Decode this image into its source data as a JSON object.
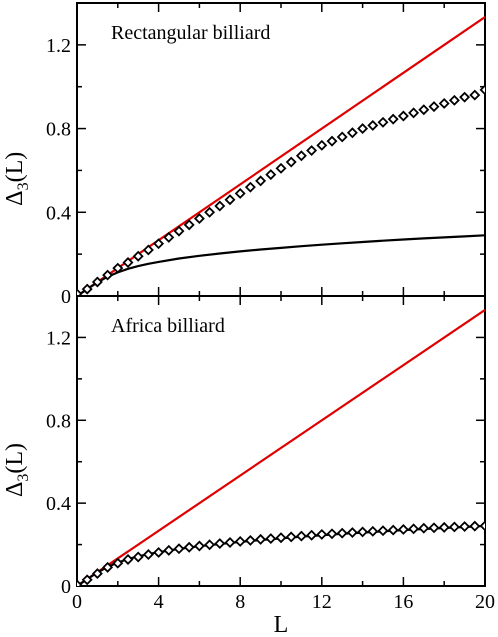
{
  "chart_data": [
    {
      "type": "line",
      "title": "Rectangular billiard",
      "xlabel": "",
      "ylabel": "Δ3(L)",
      "xlim": [
        0,
        20
      ],
      "ylim": [
        0,
        1.4
      ],
      "xticks": [
        0,
        4,
        8,
        12,
        16,
        20
      ],
      "yticks": [
        0,
        0.4,
        0.8,
        1.2
      ],
      "xtick_labels": [
        "",
        "",
        "",
        "",
        "",
        ""
      ],
      "ytick_labels": [
        "0",
        "0.4",
        "0.8",
        "1.2"
      ],
      "grid": false,
      "legend": "none",
      "series": [
        {
          "style": "line",
          "color": "#e00000",
          "x": [
            0,
            20
          ],
          "y": [
            0,
            1.333
          ]
        },
        {
          "style": "line",
          "color": "#000000",
          "x": [
            0,
            0.5,
            1,
            1.5,
            2,
            2.5,
            3,
            3.5,
            4,
            5,
            6,
            7,
            8,
            9,
            10,
            11,
            12,
            13,
            14,
            15,
            16,
            17,
            18,
            19,
            20
          ],
          "y": [
            0,
            0.033,
            0.065,
            0.092,
            0.113,
            0.13,
            0.143,
            0.154,
            0.163,
            0.179,
            0.192,
            0.203,
            0.213,
            0.222,
            0.23,
            0.238,
            0.245,
            0.252,
            0.258,
            0.264,
            0.27,
            0.275,
            0.28,
            0.285,
            0.29
          ]
        },
        {
          "style": "markers",
          "marker": "diamond",
          "color": "#000000",
          "x": [
            0,
            0.5,
            1,
            1.5,
            2,
            2.5,
            3,
            3.5,
            4,
            4.5,
            5,
            5.5,
            6,
            6.5,
            7,
            7.5,
            8,
            8.5,
            9,
            9.5,
            10,
            10.5,
            11,
            11.5,
            12,
            12.5,
            13,
            13.5,
            14,
            14.5,
            15,
            15.5,
            16,
            16.5,
            17,
            17.5,
            18,
            18.5,
            19,
            19.5,
            20
          ],
          "y": [
            0.01,
            0.033,
            0.067,
            0.1,
            0.133,
            0.16,
            0.19,
            0.22,
            0.25,
            0.28,
            0.31,
            0.34,
            0.37,
            0.4,
            0.43,
            0.46,
            0.49,
            0.52,
            0.55,
            0.58,
            0.61,
            0.64,
            0.67,
            0.695,
            0.72,
            0.74,
            0.76,
            0.78,
            0.8,
            0.815,
            0.83,
            0.845,
            0.86,
            0.875,
            0.89,
            0.905,
            0.92,
            0.935,
            0.95,
            0.96,
            0.985
          ]
        }
      ]
    },
    {
      "type": "line",
      "title": "Africa billiard",
      "xlabel": "L",
      "ylabel": "Δ3(L)",
      "xlim": [
        0,
        20
      ],
      "ylim": [
        0,
        1.4
      ],
      "xticks": [
        0,
        4,
        8,
        12,
        16,
        20
      ],
      "yticks": [
        0,
        0.4,
        0.8,
        1.2
      ],
      "xtick_labels": [
        "0",
        "4",
        "8",
        "12",
        "16",
        "20"
      ],
      "ytick_labels": [
        "0",
        "0.4",
        "0.8",
        "1.2"
      ],
      "grid": false,
      "legend": "none",
      "series": [
        {
          "style": "line",
          "color": "#e00000",
          "x": [
            0,
            20
          ],
          "y": [
            0,
            1.333
          ]
        },
        {
          "style": "line",
          "color": "#000000",
          "x": [
            0,
            0.5,
            1,
            1.5,
            2,
            2.5,
            3,
            3.5,
            4,
            5,
            6,
            7,
            8,
            9,
            10,
            11,
            12,
            13,
            14,
            15,
            16,
            17,
            18,
            19,
            20
          ],
          "y": [
            0,
            0.033,
            0.065,
            0.092,
            0.113,
            0.13,
            0.143,
            0.154,
            0.163,
            0.179,
            0.192,
            0.203,
            0.213,
            0.222,
            0.23,
            0.238,
            0.245,
            0.252,
            0.258,
            0.264,
            0.27,
            0.275,
            0.28,
            0.285,
            0.29
          ]
        },
        {
          "style": "markers",
          "marker": "diamond",
          "color": "#000000",
          "x": [
            0,
            0.5,
            1,
            1.5,
            2,
            2.5,
            3,
            3.5,
            4,
            4.5,
            5,
            5.5,
            6,
            6.5,
            7,
            7.5,
            8,
            8.5,
            9,
            9.5,
            10,
            10.5,
            11,
            11.5,
            12,
            12.5,
            13,
            13.5,
            14,
            14.5,
            15,
            15.5,
            16,
            16.5,
            17,
            17.5,
            18,
            18.5,
            19,
            19.5,
            20
          ],
          "y": [
            0.005,
            0.03,
            0.06,
            0.09,
            0.11,
            0.128,
            0.14,
            0.152,
            0.162,
            0.172,
            0.18,
            0.187,
            0.193,
            0.199,
            0.205,
            0.21,
            0.215,
            0.22,
            0.225,
            0.229,
            0.233,
            0.237,
            0.241,
            0.245,
            0.249,
            0.252,
            0.255,
            0.258,
            0.261,
            0.264,
            0.267,
            0.27,
            0.273,
            0.276,
            0.279,
            0.281,
            0.283,
            0.285,
            0.287,
            0.289,
            0.29
          ]
        }
      ]
    }
  ]
}
